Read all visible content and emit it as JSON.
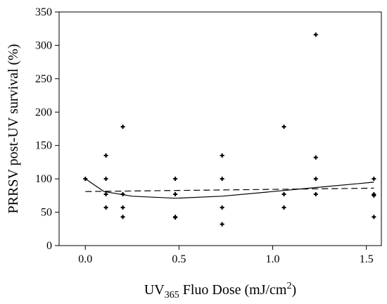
{
  "chart_data": {
    "type": "scatter",
    "xlabel": {
      "prefix": "UV",
      "subscript": "365",
      "middle": " Fluo Dose (mJ/cm",
      "superscript": "2",
      "suffix": ")"
    },
    "ylabel": "PRRSV post-UV survival (%)",
    "xlim": [
      -0.14,
      1.58
    ],
    "ylim": [
      0,
      350
    ],
    "x_ticks": [
      0.0,
      0.5,
      1.0,
      1.5
    ],
    "x_tick_labels": [
      "0.0",
      "0.5",
      "1.0",
      "1.5"
    ],
    "y_ticks": [
      0,
      50,
      100,
      150,
      200,
      250,
      300,
      350
    ],
    "y_tick_labels": [
      "0",
      "50",
      "100",
      "150",
      "200",
      "250",
      "300",
      "350"
    ],
    "grid": false,
    "legend": "none",
    "marker": "plus",
    "points": [
      {
        "x": 0.0,
        "y": 100
      },
      {
        "x": 0.11,
        "y": 135
      },
      {
        "x": 0.11,
        "y": 100
      },
      {
        "x": 0.11,
        "y": 77
      },
      {
        "x": 0.11,
        "y": 57
      },
      {
        "x": 0.2,
        "y": 178
      },
      {
        "x": 0.2,
        "y": 77
      },
      {
        "x": 0.2,
        "y": 57
      },
      {
        "x": 0.2,
        "y": 43
      },
      {
        "x": 0.48,
        "y": 100
      },
      {
        "x": 0.48,
        "y": 77
      },
      {
        "x": 0.48,
        "y": 43
      },
      {
        "x": 0.48,
        "y": 42
      },
      {
        "x": 0.73,
        "y": 135
      },
      {
        "x": 0.73,
        "y": 100
      },
      {
        "x": 0.73,
        "y": 57
      },
      {
        "x": 0.73,
        "y": 32
      },
      {
        "x": 1.06,
        "y": 178
      },
      {
        "x": 1.06,
        "y": 77
      },
      {
        "x": 1.06,
        "y": 57
      },
      {
        "x": 1.23,
        "y": 316
      },
      {
        "x": 1.23,
        "y": 132
      },
      {
        "x": 1.23,
        "y": 100
      },
      {
        "x": 1.23,
        "y": 77
      },
      {
        "x": 1.54,
        "y": 100
      },
      {
        "x": 1.54,
        "y": 77
      },
      {
        "x": 1.54,
        "y": 75
      },
      {
        "x": 1.54,
        "y": 43
      }
    ],
    "lines": [
      {
        "style": "solid",
        "x": [
          0.0,
          0.1,
          0.25,
          0.48,
          0.73,
          1.0,
          1.23,
          1.54
        ],
        "y": [
          100,
          81,
          74,
          71,
          74,
          81,
          87,
          95
        ]
      },
      {
        "style": "dashed",
        "x": [
          0.0,
          1.54
        ],
        "y": [
          81,
          86
        ]
      }
    ]
  }
}
